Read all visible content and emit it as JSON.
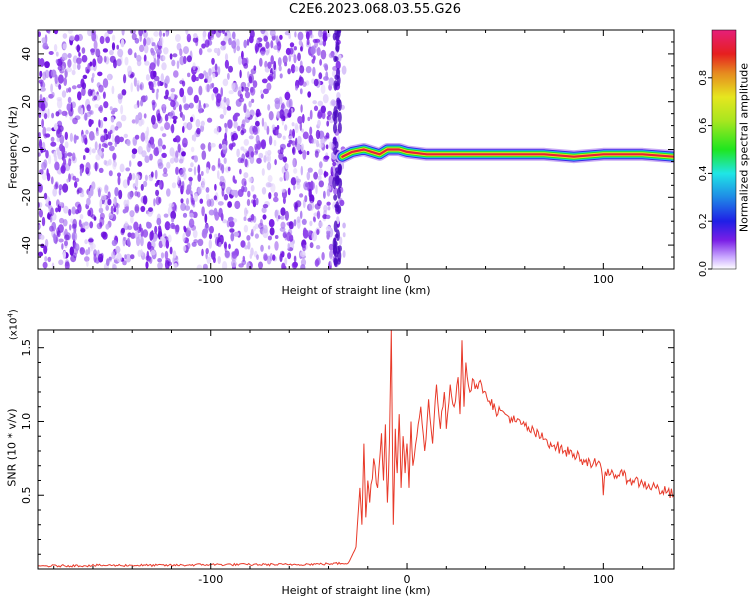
{
  "title": "C2E6.2023.068.03.55.G26",
  "colors": {
    "snr_line": "#e83a2a",
    "spectrogram_noise": "#7a1fe6",
    "axis": "#000000"
  },
  "chart_data": [
    {
      "type": "heatmap",
      "xlabel": "Height of straight line (km)",
      "ylabel": "Frequency (Hz)",
      "xlim": [
        -188,
        136
      ],
      "ylim": [
        -50,
        50
      ],
      "x_ticks": [
        -100,
        0,
        100
      ],
      "x_tick_labels": [
        "-100",
        "0",
        "100"
      ],
      "y_ticks": [
        -40,
        -20,
        0,
        20,
        40
      ],
      "y_tick_labels": [
        "-40",
        "-20",
        "0",
        "20",
        "40"
      ],
      "noise_region_x": [
        -188,
        -35
      ],
      "signal_start_x": -35,
      "signal_track": [
        {
          "x": -33,
          "freq": -3
        },
        {
          "x": -28,
          "freq": -1
        },
        {
          "x": -22,
          "freq": 0
        },
        {
          "x": -18,
          "freq": -1
        },
        {
          "x": -14,
          "freq": -2
        },
        {
          "x": -10,
          "freq": 0
        },
        {
          "x": -4,
          "freq": 0
        },
        {
          "x": 0,
          "freq": -1
        },
        {
          "x": 10,
          "freq": -2
        },
        {
          "x": 30,
          "freq": -2
        },
        {
          "x": 50,
          "freq": -2
        },
        {
          "x": 70,
          "freq": -2
        },
        {
          "x": 85,
          "freq": -3
        },
        {
          "x": 100,
          "freq": -2
        },
        {
          "x": 120,
          "freq": -2
        },
        {
          "x": 136,
          "freq": -3
        }
      ],
      "colorbar": {
        "label": "Normalized spectral amplitude",
        "range": [
          0,
          1
        ],
        "ticks": [
          0.0,
          0.2,
          0.4,
          0.6,
          0.8
        ],
        "tick_labels": [
          "0.0",
          "0.2",
          "0.4",
          "0.6",
          "0.8"
        ]
      }
    },
    {
      "type": "line",
      "xlabel": "Height of straight line (km)",
      "ylabel": "SNR (10 * v/v)",
      "y_multiplier_label": "(x10",
      "y_multiplier_exp": "4",
      "y_multiplier_close": ")",
      "xlim": [
        -188,
        136
      ],
      "ylim": [
        0,
        1.62
      ],
      "x_ticks": [
        -100,
        0,
        100
      ],
      "x_tick_labels": [
        "-100",
        "0",
        "100"
      ],
      "y_ticks": [
        0.5,
        1.0,
        1.5
      ],
      "y_tick_labels": [
        "0.5",
        "1.0",
        "1.5"
      ],
      "series": [
        {
          "x": [
            -188,
            -150,
            -120,
            -100,
            -80,
            -60,
            -40,
            -30,
            -26,
            -24,
            -23,
            -22,
            -21,
            -20,
            -19,
            -17,
            -15,
            -13,
            -12,
            -11,
            -10,
            -9,
            -8,
            -7,
            -6,
            -5,
            -4,
            -3,
            -2,
            -1,
            0,
            1,
            2,
            3,
            5,
            7,
            9,
            11,
            13,
            15,
            17,
            19,
            20,
            22,
            24,
            26,
            27,
            28,
            29,
            30,
            32,
            34,
            36,
            38,
            40,
            45,
            50,
            55,
            60,
            65,
            70,
            75,
            80,
            85,
            90,
            95,
            99,
            100,
            101,
            105,
            110,
            115,
            120,
            125,
            130,
            136
          ],
          "values": [
            0.02,
            0.025,
            0.025,
            0.03,
            0.03,
            0.03,
            0.035,
            0.04,
            0.15,
            0.55,
            0.3,
            0.85,
            0.35,
            0.6,
            0.45,
            0.75,
            0.55,
            0.92,
            0.6,
            0.98,
            0.45,
            0.85,
            1.62,
            0.3,
            0.95,
            0.65,
            1.05,
            0.55,
            0.9,
            0.65,
            0.85,
            0.55,
            1.0,
            0.7,
            0.9,
            1.1,
            0.8,
            1.15,
            0.85,
            1.25,
            0.95,
            1.2,
            0.95,
            1.25,
            1.1,
            1.3,
            1.05,
            1.55,
            1.1,
            1.4,
            1.2,
            1.28,
            1.22,
            1.25,
            1.2,
            1.08,
            1.05,
            1.0,
            0.97,
            0.92,
            0.88,
            0.84,
            0.8,
            0.78,
            0.74,
            0.72,
            0.68,
            0.5,
            0.66,
            0.65,
            0.63,
            0.6,
            0.58,
            0.56,
            0.53,
            0.5
          ]
        }
      ]
    }
  ]
}
